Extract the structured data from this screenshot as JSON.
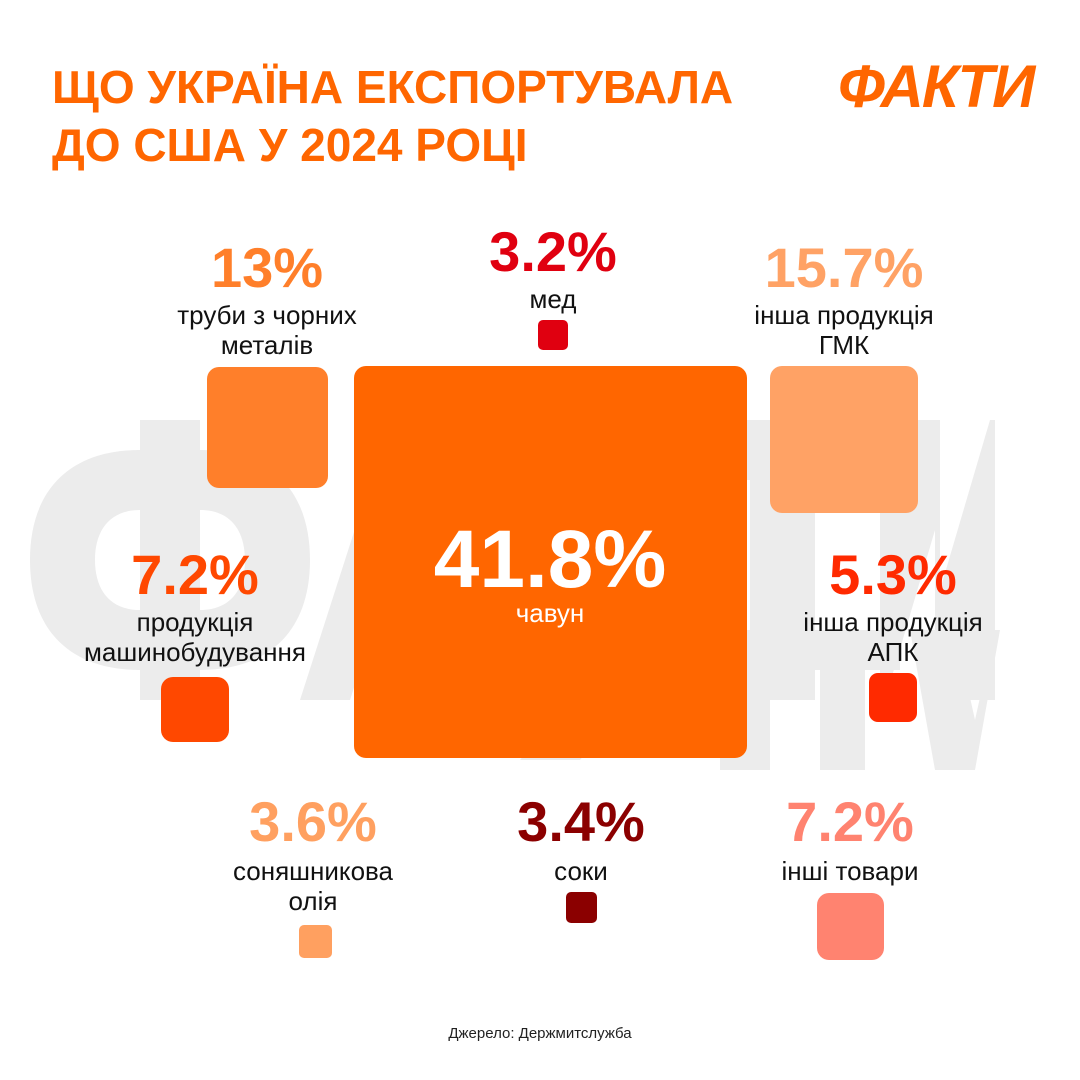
{
  "title_lines": [
    "ЩО УКРАЇНА ЕКСПОРТУВАЛА",
    "ДО США У 2024 РОЦІ"
  ],
  "logo": "ФАКТИ",
  "watermark": "ФАКТИ ICTV",
  "source": "Джерело: Держмитслужба",
  "chart_data": {
    "type": "proportional-squares",
    "items": [
      {
        "label": "чавун",
        "value_text": "41.8%",
        "value": 41.8,
        "color": "#FF6600"
      },
      {
        "label": "труби з чорних металів",
        "value_text": "13%",
        "value": 13,
        "color": "#FF7F2A"
      },
      {
        "label": "мед",
        "value_text": "3.2%",
        "value": 3.2,
        "color": "#E00010"
      },
      {
        "label": "інша продукція ГМК",
        "value_text": "15.7%",
        "value": 15.7,
        "color": "#FFA265"
      },
      {
        "label": "продукція машинобудування",
        "value_text": "7.2%",
        "value": 7.2,
        "color": "#FF4800"
      },
      {
        "label": "інша продукція АПК",
        "value_text": "5.3%",
        "value": 5.3,
        "color": "#FF2A00"
      },
      {
        "label": "соняшникова олія",
        "value_text": "3.6%",
        "value": 3.6,
        "color": "#FFA060"
      },
      {
        "label": "соки",
        "value_text": "3.4%",
        "value": 3.4,
        "color": "#8B0000"
      },
      {
        "label": "інші товари",
        "value_text": "7.2%",
        "value": 7.2,
        "color": "#FF8370"
      }
    ]
  }
}
